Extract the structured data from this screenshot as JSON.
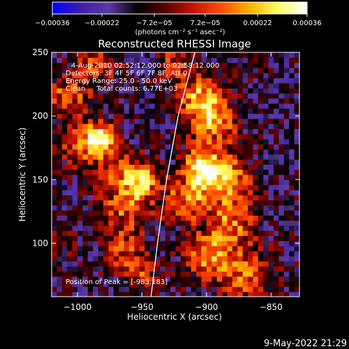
{
  "chart_data": {
    "type": "heatmap",
    "title": "Reconstructed RHESSI Image",
    "xlabel": "Heliocentric X (arcsec)",
    "ylabel": "Heliocentric Y (arcsec)",
    "xlim": [
      -1020,
      -828
    ],
    "ylim": [
      58,
      250
    ],
    "x_ticks": [
      -1000,
      -950,
      -900,
      -850
    ],
    "x_tick_labels": [
      "−1000",
      "−950",
      "−900",
      "−850"
    ],
    "y_ticks": [
      100,
      150,
      200,
      250
    ],
    "y_tick_labels": [
      "100",
      "150",
      "200",
      "250"
    ],
    "colorbar": {
      "range": [
        -0.00036,
        0.00036
      ],
      "ticks": [
        -0.00036,
        -0.00022,
        -7.2e-05,
        7.2e-05,
        0.00022,
        0.00036
      ],
      "tick_labels": [
        "−0.00036",
        "−0.00022",
        "−7.2e−05",
        "7.2e−05",
        "0.00022",
        "0.00036"
      ],
      "unit_label": "(photons cm⁻² s⁻¹ asec⁻²)",
      "colormap": [
        "#0000ff",
        "#3c1ea8",
        "#5a3aa6",
        "#000000",
        "#5a0000",
        "#c81400",
        "#ff5000",
        "#ffb400",
        "#ffff64",
        "#ffffff"
      ]
    },
    "annotations": [
      "4-Aug-2010 02:52:12.000 to 02:58:12.000",
      "Detectors: 3F 4F 5F 6F 7F 8F, Att 0",
      "Energy Range: 25.0 - 50.0 keV",
      "Clean     Total counts: 6.77E+03"
    ],
    "peak_label": "Position of Peak = [-983,183]",
    "peak_position": [
      -983,
      183
    ],
    "limb_curve": [
      [
        -943,
        58
      ],
      [
        -938,
        100
      ],
      [
        -931,
        150
      ],
      [
        -922,
        200
      ],
      [
        -909,
        250
      ]
    ],
    "hot_regions": [
      {
        "x": -983,
        "y": 183,
        "sigma": 9,
        "amp": 1.0
      },
      {
        "x": -1008,
        "y": 215,
        "sigma": 12,
        "amp": 0.55
      },
      {
        "x": -1000,
        "y": 175,
        "sigma": 10,
        "amp": 0.5
      },
      {
        "x": -970,
        "y": 160,
        "sigma": 12,
        "amp": 0.45
      },
      {
        "x": -950,
        "y": 150,
        "sigma": 10,
        "amp": 0.7
      },
      {
        "x": -962,
        "y": 130,
        "sigma": 14,
        "amp": 0.55
      },
      {
        "x": -965,
        "y": 95,
        "sigma": 12,
        "amp": 0.45
      },
      {
        "x": -950,
        "y": 75,
        "sigma": 10,
        "amp": 0.4
      },
      {
        "x": -905,
        "y": 215,
        "sigma": 12,
        "amp": 0.7
      },
      {
        "x": -895,
        "y": 195,
        "sigma": 14,
        "amp": 0.65
      },
      {
        "x": -903,
        "y": 160,
        "sigma": 10,
        "amp": 0.95
      },
      {
        "x": -885,
        "y": 150,
        "sigma": 14,
        "amp": 0.7
      },
      {
        "x": -915,
        "y": 135,
        "sigma": 12,
        "amp": 0.65
      },
      {
        "x": -880,
        "y": 115,
        "sigma": 14,
        "amp": 0.6
      },
      {
        "x": -900,
        "y": 90,
        "sigma": 12,
        "amp": 0.65
      },
      {
        "x": -870,
        "y": 75,
        "sigma": 14,
        "amp": 0.6
      },
      {
        "x": -925,
        "y": 240,
        "sigma": 10,
        "amp": 0.45
      },
      {
        "x": -985,
        "y": 240,
        "sigma": 12,
        "amp": 0.45
      },
      {
        "x": -1015,
        "y": 100,
        "sigma": 10,
        "amp": 0.25
      }
    ],
    "grid": false
  },
  "footer": {
    "timestamp": "9-May-2022 21:29"
  }
}
